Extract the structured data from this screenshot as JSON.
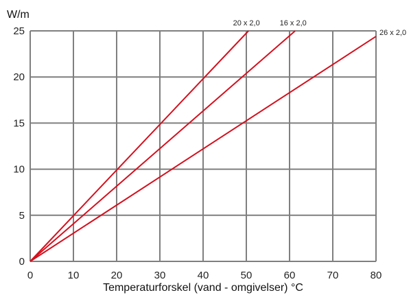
{
  "chart_data": {
    "type": "line",
    "title": "",
    "ylabel": "W/m",
    "xlabel": "Temperaturforskel (vand - omgivelser) °C",
    "xlim": [
      0,
      80
    ],
    "ylim": [
      0,
      25
    ],
    "x_ticks": [
      0,
      10,
      20,
      30,
      40,
      50,
      60,
      70,
      80
    ],
    "y_ticks": [
      0,
      5,
      10,
      15,
      20,
      25
    ],
    "grid": true,
    "series_color": "#d4101e",
    "grid_color": "#7f7f7f",
    "series": [
      {
        "name": "20 x 2,0",
        "x": [
          0,
          50.5
        ],
        "y": [
          0,
          25
        ]
      },
      {
        "name": "16 x 2,0",
        "x": [
          0,
          61.3
        ],
        "y": [
          0,
          25
        ]
      },
      {
        "name": "26 x 2,0",
        "x": [
          0,
          80
        ],
        "y": [
          0,
          24.4
        ]
      }
    ]
  }
}
